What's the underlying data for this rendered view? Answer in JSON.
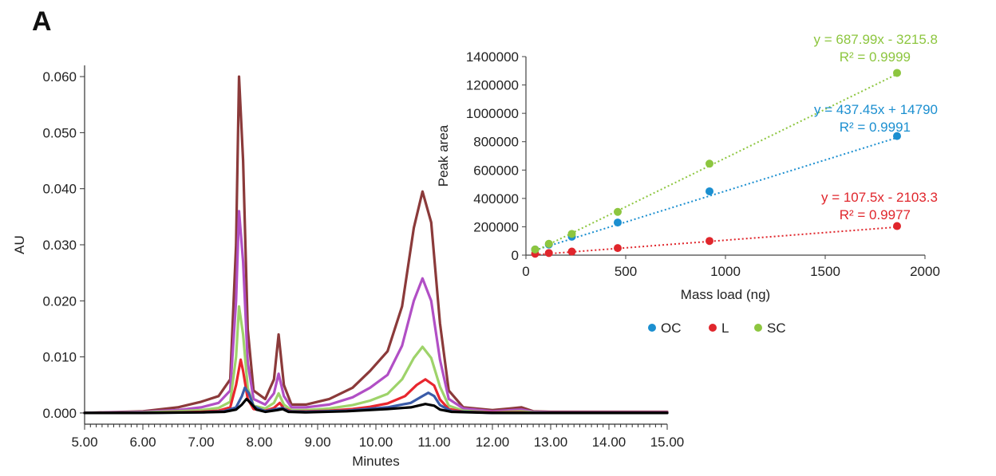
{
  "panel_label": "A",
  "chart_data": [
    {
      "type": "line",
      "xlabel": "Minutes",
      "ylabel": "AU",
      "xlim": [
        5.0,
        15.0
      ],
      "ylim": [
        -0.002,
        0.062
      ],
      "x_ticks": [
        "5.00",
        "6.00",
        "7.00",
        "8.00",
        "9.00",
        "10.00",
        "11.00",
        "12.00",
        "13.00",
        "14.00",
        "15.00"
      ],
      "y_ticks": [
        "0.000",
        "0.010",
        "0.020",
        "0.030",
        "0.040",
        "0.050",
        "0.060"
      ],
      "x_tick_values": [
        5,
        6,
        7,
        8,
        9,
        10,
        11,
        12,
        13,
        14,
        15
      ],
      "y_tick_values": [
        0,
        0.01,
        0.02,
        0.03,
        0.04,
        0.05,
        0.06
      ],
      "grid": false,
      "series": [
        {
          "color": "#8B3A3A",
          "x": [
            5.0,
            6.0,
            6.6,
            7.0,
            7.3,
            7.5,
            7.6,
            7.65,
            7.72,
            7.8,
            7.9,
            8.1,
            8.25,
            8.33,
            8.42,
            8.55,
            8.8,
            9.2,
            9.6,
            9.9,
            10.2,
            10.45,
            10.65,
            10.8,
            10.95,
            11.1,
            11.25,
            11.5,
            12.0,
            12.5,
            12.7,
            13.0,
            15.0
          ],
          "y": [
            0.0,
            0.0003,
            0.001,
            0.002,
            0.003,
            0.006,
            0.03,
            0.06,
            0.045,
            0.015,
            0.004,
            0.0025,
            0.006,
            0.014,
            0.005,
            0.0015,
            0.0015,
            0.0025,
            0.0045,
            0.0075,
            0.011,
            0.019,
            0.033,
            0.0395,
            0.034,
            0.016,
            0.004,
            0.001,
            0.0005,
            0.001,
            0.0003,
            0.0002,
            0.0002
          ]
        },
        {
          "color": "#B14FC5",
          "x": [
            5.0,
            6.0,
            6.6,
            7.0,
            7.3,
            7.5,
            7.6,
            7.65,
            7.72,
            7.8,
            7.9,
            8.1,
            8.25,
            8.33,
            8.42,
            8.55,
            8.8,
            9.2,
            9.6,
            9.9,
            10.2,
            10.45,
            10.65,
            10.8,
            10.95,
            11.1,
            11.25,
            11.5,
            12.0,
            12.5,
            12.7,
            13.0,
            15.0
          ],
          "y": [
            0.0,
            0.0002,
            0.0005,
            0.001,
            0.0018,
            0.004,
            0.02,
            0.036,
            0.027,
            0.009,
            0.0025,
            0.0015,
            0.0035,
            0.007,
            0.003,
            0.001,
            0.001,
            0.0015,
            0.0028,
            0.0045,
            0.0068,
            0.012,
            0.02,
            0.024,
            0.02,
            0.0095,
            0.0025,
            0.0008,
            0.0003,
            0.0006,
            0.0002,
            0.0001,
            0.0001
          ]
        },
        {
          "color": "#9ED36A",
          "x": [
            5.0,
            6.0,
            6.6,
            7.0,
            7.3,
            7.5,
            7.6,
            7.65,
            7.72,
            7.8,
            7.9,
            8.1,
            8.25,
            8.33,
            8.42,
            8.55,
            8.8,
            9.2,
            9.6,
            9.9,
            10.2,
            10.45,
            10.65,
            10.8,
            10.95,
            11.1,
            11.25,
            11.5,
            12.0,
            12.5,
            12.7,
            13.0,
            15.0
          ],
          "y": [
            0.0,
            0.0001,
            0.0003,
            0.0005,
            0.0009,
            0.002,
            0.01,
            0.019,
            0.014,
            0.0045,
            0.0013,
            0.0008,
            0.0018,
            0.0035,
            0.0015,
            0.0005,
            0.0005,
            0.0008,
            0.0014,
            0.0022,
            0.0034,
            0.006,
            0.0098,
            0.0118,
            0.0098,
            0.0047,
            0.0013,
            0.0004,
            0.0001,
            0.0003,
            0.0001,
            0.0,
            0.0
          ]
        },
        {
          "color": "#E8262E",
          "x": [
            5.0,
            6.0,
            6.6,
            7.0,
            7.3,
            7.5,
            7.6,
            7.68,
            7.72,
            7.8,
            7.9,
            8.1,
            8.25,
            8.35,
            8.42,
            8.55,
            8.8,
            9.2,
            9.6,
            9.9,
            10.2,
            10.5,
            10.7,
            10.85,
            11.0,
            11.1,
            11.25,
            11.5,
            12.0,
            12.5,
            12.7,
            13.0,
            15.0
          ],
          "y": [
            0.0,
            0.0,
            0.0001,
            0.0002,
            0.0004,
            0.001,
            0.005,
            0.0095,
            0.0075,
            0.0025,
            0.0007,
            0.0004,
            0.0009,
            0.0018,
            0.0008,
            0.0003,
            0.0003,
            0.0004,
            0.0007,
            0.0011,
            0.0017,
            0.003,
            0.005,
            0.006,
            0.0049,
            0.0024,
            0.0007,
            0.0002,
            0.0001,
            0.0001,
            0.0,
            0.0,
            0.0
          ]
        },
        {
          "color": "#3A5BA8",
          "x": [
            5.0,
            6.0,
            7.0,
            7.4,
            7.6,
            7.7,
            7.75,
            7.82,
            7.9,
            8.1,
            8.3,
            8.4,
            8.5,
            8.8,
            9.5,
            10.2,
            10.6,
            10.8,
            10.9,
            11.0,
            11.1,
            11.3,
            12.0,
            15.0
          ],
          "y": [
            0.0,
            0.0,
            0.0001,
            0.0003,
            0.001,
            0.003,
            0.0045,
            0.0035,
            0.0012,
            0.0003,
            0.0007,
            0.0009,
            0.0003,
            0.0002,
            0.0004,
            0.001,
            0.0018,
            0.003,
            0.0036,
            0.003,
            0.0014,
            0.0003,
            0.0,
            0.0
          ]
        },
        {
          "color": "#000000",
          "x": [
            5.0,
            6.0,
            7.0,
            7.4,
            7.6,
            7.7,
            7.78,
            7.85,
            7.95,
            8.1,
            8.3,
            8.4,
            8.5,
            8.8,
            9.5,
            10.2,
            10.6,
            10.85,
            11.0,
            11.1,
            11.3,
            12.0,
            15.0
          ],
          "y": [
            0.0,
            0.0,
            0.0001,
            0.0002,
            0.0006,
            0.0015,
            0.0025,
            0.0018,
            0.0006,
            0.0002,
            0.0005,
            0.0007,
            0.0002,
            0.0001,
            0.0003,
            0.0007,
            0.001,
            0.0016,
            0.0013,
            0.0006,
            0.0002,
            0.0,
            0.0
          ]
        }
      ]
    },
    {
      "type": "scatter",
      "xlabel": "Mass load (ng)",
      "ylabel": "Peak area",
      "xlim": [
        0,
        2000
      ],
      "ylim": [
        0,
        1400000
      ],
      "x_ticks": [
        "0",
        "500",
        "1000",
        "1500",
        "2000"
      ],
      "y_ticks": [
        "0",
        "200000",
        "400000",
        "600000",
        "800000",
        "1000000",
        "1200000",
        "1400000"
      ],
      "x_tick_values": [
        0,
        500,
        1000,
        1500,
        2000
      ],
      "y_tick_values": [
        0,
        200000,
        400000,
        600000,
        800000,
        1000000,
        1200000,
        1400000
      ],
      "grid": false,
      "legend_position": "bottom",
      "series": [
        {
          "name": "OC",
          "color": "#1B8FD0",
          "x": [
            46,
            115,
            230,
            460,
            920,
            1860
          ],
          "y": [
            40000,
            75000,
            130000,
            230000,
            450000,
            840000
          ],
          "trendline": {
            "slope": 437.45,
            "intercept": 14790
          },
          "equation": "y = 437.45x + 14790",
          "r2": "R² = 0.9991"
        },
        {
          "name": "L",
          "color": "#E0262C",
          "x": [
            46,
            115,
            230,
            460,
            920,
            1860
          ],
          "y": [
            10000,
            15000,
            25000,
            50000,
            100000,
            205000
          ],
          "trendline": {
            "slope": 107.5,
            "intercept": -2103.3
          },
          "equation": "y = 107.5x - 2103.3",
          "r2": "R² = 0.9977"
        },
        {
          "name": "SC",
          "color": "#8DC63F",
          "x": [
            46,
            115,
            230,
            460,
            920,
            1860
          ],
          "y": [
            40000,
            80000,
            150000,
            305000,
            645000,
            1285000
          ],
          "trendline": {
            "slope": 687.99,
            "intercept": -3215.8
          },
          "equation": "y = 687.99x - 3215.8",
          "r2": "R² = 0.9999"
        }
      ]
    }
  ]
}
